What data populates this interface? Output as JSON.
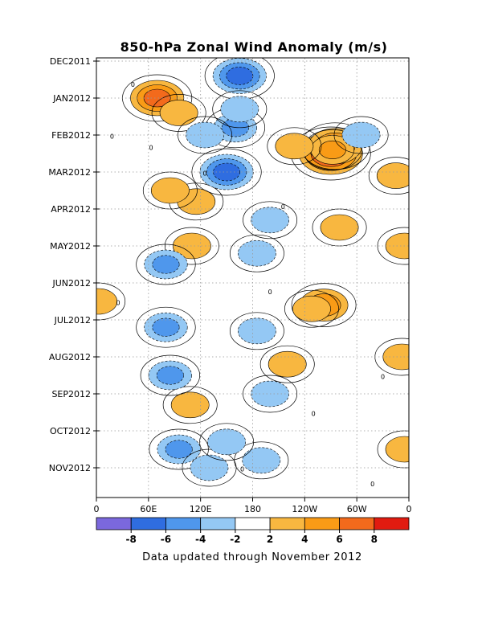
{
  "chart_data": {
    "type": "heatmap",
    "title": "850-hPa Zonal Wind Anomaly (m/s)",
    "xlabel": "",
    "ylabel": "",
    "x_tick_labels": [
      "0",
      "60E",
      "120E",
      "180",
      "120W",
      "60W",
      "0"
    ],
    "x_tick_values_deg_east": [
      0,
      60,
      120,
      180,
      240,
      300,
      360
    ],
    "y_tick_labels": [
      "DEC2011",
      "JAN2012",
      "FEB2012",
      "MAR2012",
      "APR2012",
      "MAY2012",
      "JUN2012",
      "JUL2012",
      "AUG2012",
      "SEP2012",
      "OCT2012",
      "NOV2012"
    ],
    "colorbar": {
      "levels": [
        -8,
        -6,
        -4,
        -2,
        2,
        4,
        6,
        8
      ],
      "tick_labels": [
        "-8",
        "-6",
        "-4",
        "-2",
        "2",
        "4",
        "6",
        "8"
      ],
      "colors": [
        "#7b68dd",
        "#2f6de0",
        "#4f97ec",
        "#94c8f4",
        "#ffffff",
        "#f8b740",
        "#f99b16",
        "#f36a1c",
        "#e11b10"
      ]
    },
    "grid": true,
    "anomaly_features": [
      {
        "lon": 70,
        "month_index": 1.0,
        "value": 6
      },
      {
        "lon": 270,
        "month_index": 2.5,
        "value": 8
      },
      {
        "lon": 275,
        "month_index": 2.3,
        "value": 6
      },
      {
        "lon": 272,
        "month_index": 2.4,
        "value": 4
      },
      {
        "lon": 228,
        "month_index": 2.3,
        "value": 3
      },
      {
        "lon": 95,
        "month_index": 1.4,
        "value": 3
      },
      {
        "lon": 115,
        "month_index": 3.8,
        "value": 3
      },
      {
        "lon": 85,
        "month_index": 3.5,
        "value": 3
      },
      {
        "lon": 262,
        "month_index": 6.6,
        "value": 5
      },
      {
        "lon": 248,
        "month_index": 6.7,
        "value": 3
      },
      {
        "lon": 355,
        "month_index": 5.0,
        "value": 3
      },
      {
        "lon": 2,
        "month_index": 6.5,
        "value": 3
      },
      {
        "lon": 110,
        "month_index": 5.0,
        "value": 3
      },
      {
        "lon": 108,
        "month_index": 9.3,
        "value": 3
      },
      {
        "lon": 355,
        "month_index": 10.5,
        "value": 3
      },
      {
        "lon": 352,
        "month_index": 8.0,
        "value": 3
      },
      {
        "lon": 345,
        "month_index": 3.1,
        "value": 3
      },
      {
        "lon": 220,
        "month_index": 8.2,
        "value": 3
      },
      {
        "lon": 280,
        "month_index": 4.5,
        "value": 3
      },
      {
        "lon": 165,
        "month_index": 0.4,
        "value": -6
      },
      {
        "lon": 150,
        "month_index": 3.0,
        "value": -6
      },
      {
        "lon": 160,
        "month_index": 1.8,
        "value": -4
      },
      {
        "lon": 125,
        "month_index": 2.0,
        "value": -3
      },
      {
        "lon": 165,
        "month_index": 1.3,
        "value": -3
      },
      {
        "lon": 80,
        "month_index": 5.5,
        "value": -4
      },
      {
        "lon": 80,
        "month_index": 7.2,
        "value": -4
      },
      {
        "lon": 85,
        "month_index": 8.5,
        "value": -4
      },
      {
        "lon": 95,
        "month_index": 10.5,
        "value": -4
      },
      {
        "lon": 185,
        "month_index": 7.3,
        "value": -3
      },
      {
        "lon": 185,
        "month_index": 5.2,
        "value": -3
      },
      {
        "lon": 200,
        "month_index": 4.3,
        "value": -3
      },
      {
        "lon": 130,
        "month_index": 11.0,
        "value": -3
      },
      {
        "lon": 200,
        "month_index": 9.0,
        "value": -3
      },
      {
        "lon": 190,
        "month_index": 10.8,
        "value": -3
      },
      {
        "lon": 150,
        "month_index": 10.3,
        "value": -3
      },
      {
        "lon": 305,
        "month_index": 2.0,
        "value": -3
      }
    ],
    "footer": "Data updated through November 2012"
  }
}
